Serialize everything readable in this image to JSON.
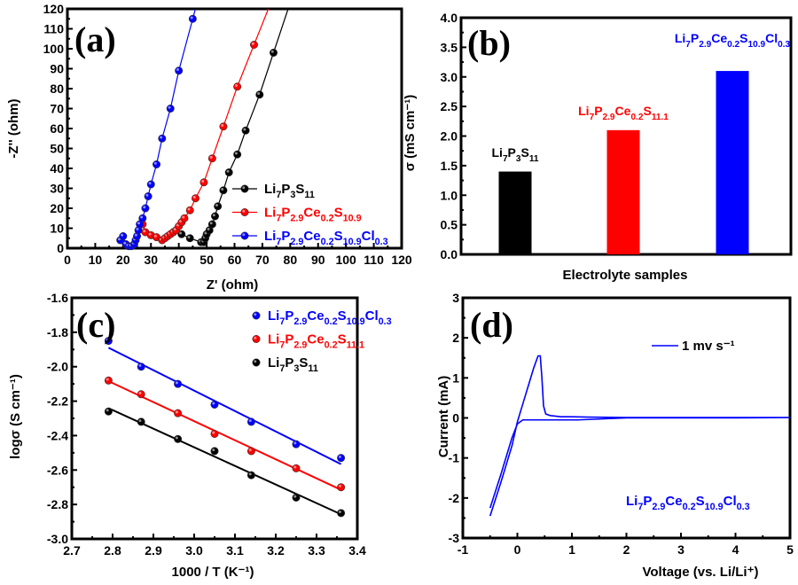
{
  "colors": {
    "black": "#000000",
    "red": "#ff0000",
    "blue": "#0000ff"
  },
  "chart_data": [
    {
      "panel": "(a)",
      "type": "scatter",
      "xlabel": "Z' (ohm)",
      "ylabel": "-Z'' (ohm)",
      "xlim": [
        0,
        120
      ],
      "ylim": [
        0,
        120
      ],
      "xticks": [
        0,
        10,
        20,
        30,
        40,
        50,
        60,
        70,
        80,
        90,
        100,
        110,
        120
      ],
      "yticks": [
        0,
        10,
        20,
        30,
        40,
        50,
        60,
        70,
        80,
        90,
        100,
        110,
        120
      ],
      "legend": "bottom-right",
      "series": [
        {
          "name": "Li7P3S11",
          "color": "#000000",
          "x": [
            38,
            41,
            44,
            48,
            49,
            49.5,
            50,
            51,
            52,
            53,
            54,
            56,
            58,
            61,
            64,
            69,
            74
          ],
          "y": [
            8,
            7,
            5,
            3,
            3,
            5,
            7,
            9,
            12,
            16,
            21,
            29,
            38,
            47,
            59,
            77,
            98
          ]
        },
        {
          "name": "Li7P2.9Ce0.2S10.9",
          "color": "#ff0000",
          "x": [
            27,
            28,
            30,
            32,
            34,
            35,
            36,
            37,
            38,
            39,
            40,
            41,
            42,
            44,
            46,
            49,
            52,
            56,
            61,
            67
          ],
          "y": [
            12,
            8,
            6.5,
            5.5,
            4,
            5,
            6,
            7,
            8,
            9,
            11,
            13,
            15,
            19,
            25,
            33,
            45,
            61,
            81,
            102
          ]
        },
        {
          "name": "Li7P2.9Ce0.2S10.9Cl0.3",
          "color": "#0000ff",
          "x": [
            19,
            20,
            21,
            22,
            23,
            24,
            24.5,
            25,
            25.5,
            26,
            27,
            28,
            29,
            30,
            32,
            34,
            37,
            40,
            45
          ],
          "y": [
            4,
            6,
            2,
            1,
            1,
            2,
            4,
            6,
            9,
            12,
            15,
            20,
            26,
            32,
            42,
            55,
            70,
            89,
            115
          ]
        }
      ]
    },
    {
      "panel": "(b)",
      "type": "bar",
      "xlabel": "Electrolyte samples",
      "ylabel": "σ (mS cm⁻¹)",
      "ylim": [
        0,
        4.0
      ],
      "yticks": [
        "0.0",
        "0.5",
        "1.0",
        "1.5",
        "2.0",
        "2.5",
        "3.0",
        "3.5",
        "4.0"
      ],
      "categories": [
        "Li7P3S11",
        "Li7P2.9Ce0.2S11.1",
        "Li7P2.9Ce0.2S10.9Cl0.3"
      ],
      "values": [
        1.4,
        2.1,
        3.1
      ],
      "colors": [
        "#000000",
        "#ff0000",
        "#0000ff"
      ]
    },
    {
      "panel": "(c)",
      "type": "scatter",
      "xlabel": "1000 / T (K⁻¹)",
      "ylabel": "logσ (S cm⁻¹)",
      "xlim": [
        2.7,
        3.4
      ],
      "ylim": [
        -3.0,
        -1.6
      ],
      "xticks": [
        "2.7",
        "2.8",
        "2.9",
        "3.0",
        "3.1",
        "3.2",
        "3.3",
        "3.4"
      ],
      "yticks": [
        "-3.0",
        "-2.8",
        "-2.6",
        "-2.4",
        "-2.2",
        "-2.0",
        "-1.8",
        "-1.6"
      ],
      "legend": "top-right",
      "x": [
        2.79,
        2.87,
        2.96,
        3.05,
        3.14,
        3.25,
        3.36
      ],
      "series": [
        {
          "name": "Li7P2.9Ce0.2S10.9Cl0.3",
          "color": "#0000ff",
          "values": [
            -1.85,
            -2.0,
            -2.1,
            -2.22,
            -2.32,
            -2.45,
            -2.53
          ]
        },
        {
          "name": "Li7P2.9Ce0.2S11.1",
          "color": "#ff0000",
          "values": [
            -2.08,
            -2.16,
            -2.27,
            -2.39,
            -2.49,
            -2.59,
            -2.7
          ]
        },
        {
          "name": "Li7P3S11",
          "color": "#000000",
          "values": [
            -2.26,
            -2.32,
            -2.42,
            -2.49,
            -2.63,
            -2.76,
            -2.85
          ]
        }
      ],
      "fit": "linear"
    },
    {
      "panel": "(d)",
      "type": "line",
      "xlabel": "Voltage (vs. Li/Li⁺)",
      "ylabel": "Current (mA)",
      "xlim": [
        -1,
        5
      ],
      "ylim": [
        -3,
        3
      ],
      "xticks": [
        "-1",
        "0",
        "1",
        "2",
        "3",
        "4",
        "5"
      ],
      "yticks": [
        "-3",
        "-2",
        "-1",
        "0",
        "1",
        "2",
        "3"
      ],
      "legend": "top-right",
      "series": [
        {
          "name": "1 mv s⁻¹",
          "color": "#0000ff",
          "x": [
            -0.5,
            -0.3,
            -0.1,
            0.0,
            0.1,
            0.2,
            0.3,
            0.38,
            0.42,
            0.45,
            0.48,
            0.52,
            0.6,
            0.8,
            1.0,
            1.3,
            2,
            3,
            4,
            5,
            4,
            3,
            2,
            1.1,
            0.5,
            0.1,
            0.0,
            -0.1,
            -0.3,
            -0.5
          ],
          "y": [
            -2.45,
            -1.6,
            -0.7,
            -0.1,
            0.35,
            0.8,
            1.25,
            1.55,
            1.55,
            1.0,
            0.3,
            0.1,
            0.06,
            0.03,
            0.03,
            0.02,
            0.01,
            0.01,
            0.01,
            0.01,
            0.0,
            0.0,
            0.0,
            -0.05,
            -0.05,
            -0.05,
            -0.15,
            -0.5,
            -1.4,
            -2.25
          ]
        }
      ],
      "annotation": "Li7P2.9Ce0.2S10.9Cl0.3"
    }
  ]
}
